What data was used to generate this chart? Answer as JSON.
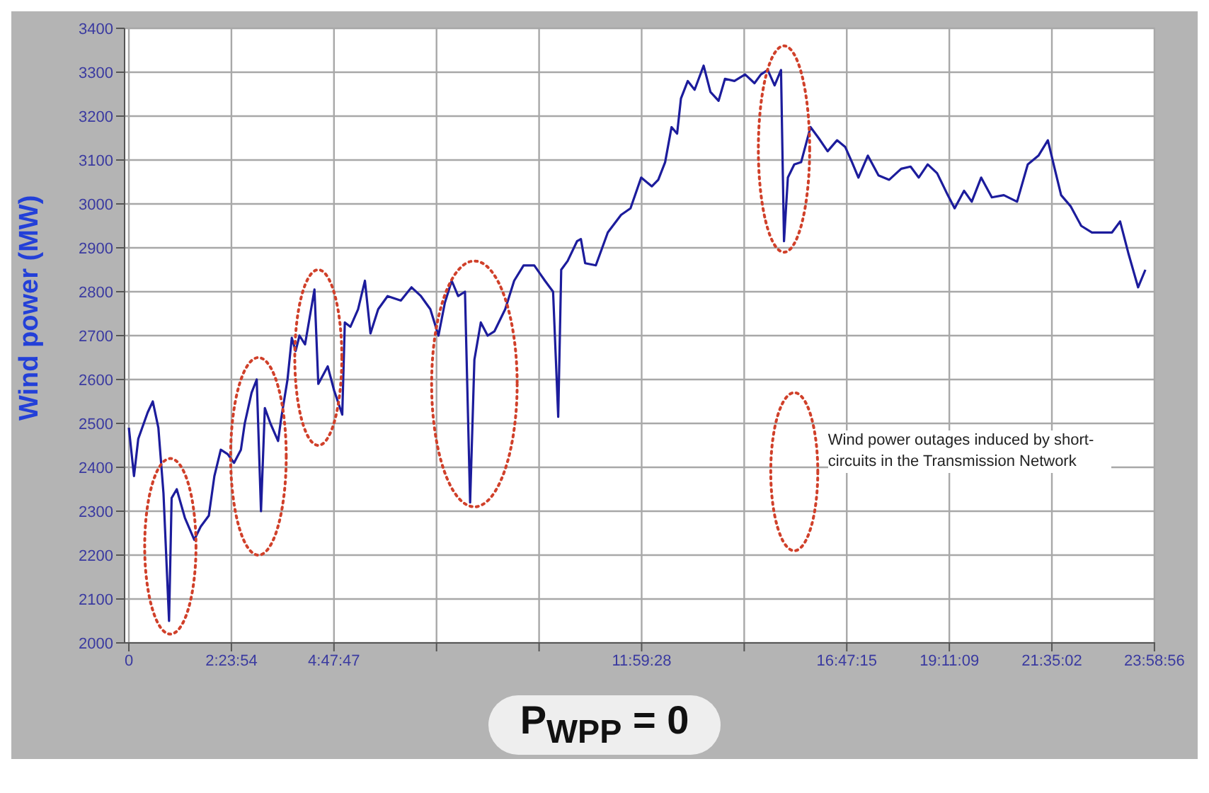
{
  "chart_data": {
    "type": "line",
    "ylabel": "Wind power (MW)",
    "x": [
      0,
      0.12,
      0.22,
      0.44,
      0.56,
      0.69,
      0.81,
      0.94,
      1.0,
      1.12,
      1.31,
      1.53,
      1.68,
      1.87,
      2.0,
      2.15,
      2.31,
      2.46,
      2.62,
      2.71,
      2.87,
      2.99,
      3.09,
      3.18,
      3.31,
      3.49,
      3.56,
      3.71,
      3.81,
      3.9,
      3.99,
      4.12,
      4.34,
      4.43,
      4.65,
      4.8,
      4.99,
      5.05,
      5.18,
      5.36,
      5.52,
      5.65,
      5.83,
      6.05,
      6.36,
      6.61,
      6.83,
      7.05,
      7.24,
      7.39,
      7.55,
      7.7,
      7.86,
      7.98,
      8.08,
      8.23,
      8.39,
      8.55,
      8.8,
      9.01,
      9.23,
      9.48,
      9.73,
      9.92,
      10.04,
      10.11,
      10.26,
      10.48,
      10.57,
      10.67,
      10.92,
      11.2,
      11.51,
      11.73,
      11.98,
      12.23,
      12.38,
      12.54,
      12.69,
      12.82,
      12.91,
      13.07,
      13.23,
      13.44,
      13.6,
      13.79,
      13.94,
      14.16,
      14.41,
      14.63,
      14.78,
      14.94,
      15.1,
      15.25,
      15.32,
      15.41,
      15.56,
      15.72,
      15.94,
      16.13,
      16.34,
      16.56,
      16.75,
      16.91,
      17.06,
      17.28,
      17.53,
      17.78,
      18.06,
      18.28,
      18.47,
      18.68,
      18.9,
      19.15,
      19.31,
      19.53,
      19.71,
      19.93,
      20.18,
      20.46,
      20.77,
      21.02,
      21.27,
      21.49,
      21.65,
      21.8,
      22.02,
      22.27,
      22.52,
      22.8,
      22.99,
      23.18,
      23.38,
      23.6,
      23.77
    ],
    "series": [
      {
        "color": "#1c1c9c",
        "values": [
          2490,
          2380,
          2465,
          2525,
          2550,
          2490,
          2340,
          2050,
          2330,
          2350,
          2285,
          2235,
          2265,
          2290,
          2380,
          2440,
          2430,
          2410,
          2440,
          2500,
          2570,
          2600,
          2300,
          2535,
          2500,
          2460,
          2510,
          2600,
          2695,
          2665,
          2700,
          2680,
          2805,
          2590,
          2630,
          2575,
          2520,
          2730,
          2720,
          2760,
          2825,
          2705,
          2760,
          2790,
          2780,
          2810,
          2790,
          2760,
          2700,
          2775,
          2825,
          2790,
          2800,
          2320,
          2645,
          2730,
          2700,
          2710,
          2760,
          2825,
          2860,
          2860,
          2825,
          2800,
          2515,
          2850,
          2870,
          2915,
          2920,
          2865,
          2860,
          2935,
          2975,
          2990,
          3060,
          3040,
          3055,
          3095,
          3175,
          3160,
          3240,
          3280,
          3260,
          3315,
          3255,
          3235,
          3285,
          3280,
          3295,
          3275,
          3295,
          3305,
          3270,
          3305,
          2915,
          3060,
          3090,
          3095,
          3175,
          3150,
          3120,
          3145,
          3130,
          3095,
          3060,
          3110,
          3065,
          3055,
          3080,
          3085,
          3060,
          3090,
          3070,
          3020,
          2990,
          3030,
          3005,
          3060,
          3015,
          3020,
          3005,
          3090,
          3110,
          3145,
          3080,
          3020,
          2995,
          2950,
          2935,
          2935,
          2935,
          2960,
          2885,
          2810,
          2850
        ]
      }
    ],
    "xlim": [
      -0.1,
      24
    ],
    "xticks": [
      0,
      {
        "value": 2.3982,
        "label": "2:23:54"
      },
      {
        "value": 4.7964,
        "label": "4:47:47"
      },
      {
        "value": 7.1947,
        "label": null
      },
      {
        "value": 9.5929,
        "label": null
      },
      {
        "value": 11.9911,
        "label": "11:59:28"
      },
      {
        "value": 14.3893,
        "label": null
      },
      {
        "value": 16.7876,
        "label": "16:47:15"
      },
      {
        "value": 19.1858,
        "label": "19:11:09"
      },
      {
        "value": 21.5839,
        "label": "21:35:02"
      },
      {
        "value": 23.9822,
        "label": "23:58:56"
      }
    ],
    "ylim": [
      2000,
      3400
    ],
    "yticks": [
      2000,
      2100,
      2200,
      2300,
      2400,
      2500,
      2600,
      2700,
      2800,
      2900,
      3000,
      3100,
      3200,
      3300,
      3400
    ],
    "grid": true,
    "marker": "none",
    "line_style": "solid",
    "annotations": [
      "Wind power outages induced by short-circuits in the Transmission Network",
      "P$_{WPP}$ = 0"
    ]
  }
}
